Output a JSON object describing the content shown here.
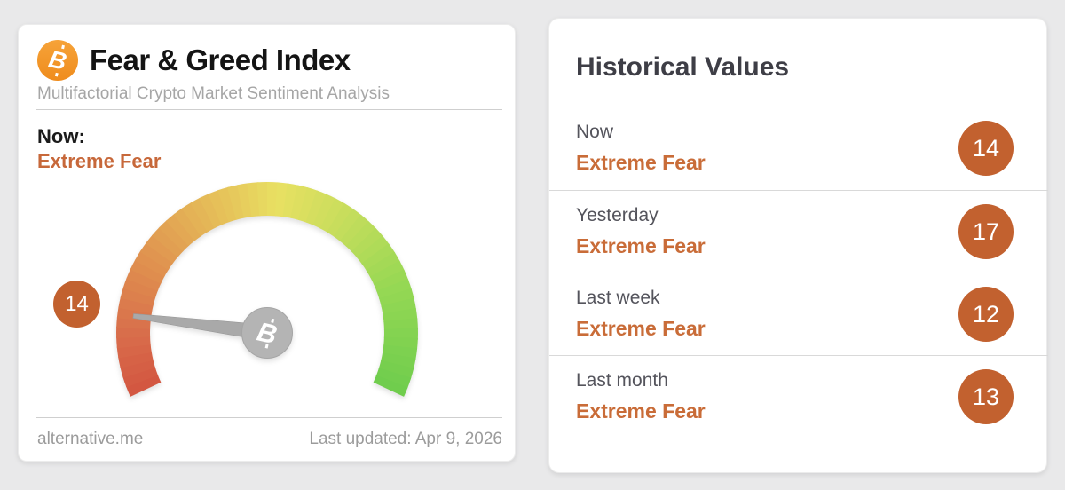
{
  "page": {
    "background_color": "#e9e9ea"
  },
  "gauge_card": {
    "title": "Fear & Greed Index",
    "subtitle": "Multifactorial Crypto Market Sentiment Analysis",
    "now_label": "Now:",
    "now_sentiment": "Extreme Fear",
    "value_badge": "14",
    "footer": {
      "source": "alternative.me",
      "last_updated": "Last updated: Apr 9, 2026"
    }
  },
  "historical_card": {
    "title": "Historical Values",
    "rows": [
      {
        "label": "Now",
        "sentiment": "Extreme Fear",
        "value": "14"
      },
      {
        "label": "Yesterday",
        "sentiment": "Extreme Fear",
        "value": "17"
      },
      {
        "label": "Last week",
        "sentiment": "Extreme Fear",
        "value": "12"
      },
      {
        "label": "Last month",
        "sentiment": "Extreme Fear",
        "value": "13"
      }
    ]
  },
  "chart_data": {
    "type": "gauge",
    "title": "Fear & Greed Index",
    "value": 14,
    "min": 0,
    "max": 100,
    "classification": "Extreme Fear",
    "start_angle_deg": 155,
    "sweep_deg": 230,
    "color_stops": [
      [
        0.0,
        "#d25540"
      ],
      [
        0.1,
        "#d86c4b"
      ],
      [
        0.25,
        "#e0934f"
      ],
      [
        0.42,
        "#e6c35a"
      ],
      [
        0.52,
        "#e8e062"
      ],
      [
        0.65,
        "#c6dd5c"
      ],
      [
        0.8,
        "#97d854"
      ],
      [
        1.0,
        "#6ecd4d"
      ]
    ],
    "historical": [
      {
        "label": "Now",
        "classification": "Extreme Fear",
        "value": 14
      },
      {
        "label": "Yesterday",
        "classification": "Extreme Fear",
        "value": 17
      },
      {
        "label": "Last week",
        "classification": "Extreme Fear",
        "value": 12
      },
      {
        "label": "Last month",
        "classification": "Extreme Fear",
        "value": 13
      }
    ]
  },
  "colors": {
    "sentiment_orange": "#c76a38",
    "badge_orange": "#c2612f",
    "bitcoin_orange": "#f7931a",
    "needle_gray": "#a9a9a9"
  }
}
